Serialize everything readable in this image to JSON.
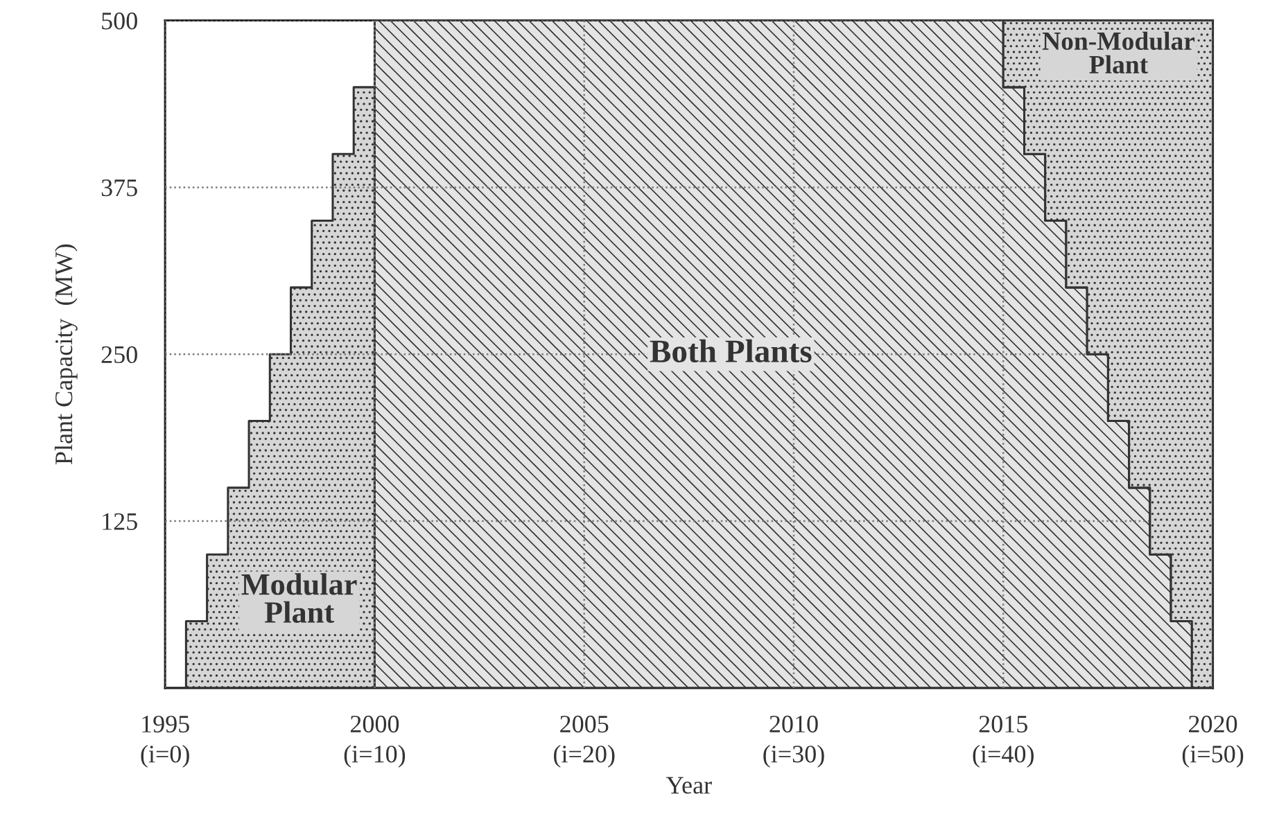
{
  "chart_data": {
    "type": "area",
    "xlabel": "Year",
    "ylabel": "Plant Capacity  (MW)",
    "xlim": [
      1995,
      2020
    ],
    "ylim": [
      0,
      500
    ],
    "xticks": [
      1995,
      2000,
      2005,
      2010,
      2015,
      2020
    ],
    "x2lim": [
      0,
      50
    ],
    "x2ticks": [
      {
        "value": 0,
        "label": "(i=0)"
      },
      {
        "value": 10,
        "label": "(i=10)"
      },
      {
        "value": 20,
        "label": "(i=20)"
      },
      {
        "value": 30,
        "label": "(i=30)"
      },
      {
        "value": 40,
        "label": "(i=40)"
      },
      {
        "value": 50,
        "label": "(i=50)"
      }
    ],
    "yticks": [
      125,
      250,
      375,
      500
    ],
    "grid": true,
    "stacked": true,
    "x": [
      1995.5,
      1995.5,
      1996,
      1996,
      1996.5,
      1996.5,
      1997,
      1997,
      1997.5,
      1997.5,
      1998,
      1998,
      1998.5,
      1998.5,
      1999,
      1999,
      1999.5,
      1999.5,
      2000,
      2000,
      2015,
      2015,
      2015.5,
      2015.5,
      2016,
      2016,
      2016.5,
      2016.5,
      2017,
      2017,
      2017.5,
      2017.5,
      2018,
      2018,
      2018.5,
      2018.5,
      2019,
      2019,
      2019.5,
      2019.5,
      2020
    ],
    "series": [
      {
        "color": "#333333",
        "values": [
          0,
          50,
          50,
          100,
          100,
          150,
          150,
          200,
          200,
          250,
          250,
          300,
          300,
          350,
          350,
          400,
          400,
          450,
          450,
          0,
          null,
          null,
          null,
          null,
          null,
          null,
          null,
          null,
          null,
          null,
          null,
          null,
          null,
          null,
          null,
          null,
          null,
          null,
          null,
          null,
          null
        ]
      },
      {
        "color": "#333333",
        "values": [
          null,
          null,
          null,
          null,
          null,
          null,
          null,
          null,
          null,
          null,
          null,
          null,
          null,
          null,
          null,
          null,
          null,
          null,
          null,
          500,
          500,
          450,
          450,
          400,
          400,
          350,
          350,
          300,
          300,
          250,
          250,
          200,
          200,
          150,
          150,
          100,
          100,
          50,
          50,
          0,
          0
        ]
      },
      {
        "color": "#333333",
        "values": [
          null,
          null,
          null,
          null,
          null,
          null,
          null,
          null,
          null,
          null,
          null,
          null,
          null,
          null,
          null,
          null,
          null,
          null,
          null,
          null,
          0,
          50,
          50,
          100,
          100,
          150,
          150,
          200,
          200,
          250,
          250,
          300,
          300,
          350,
          350,
          400,
          400,
          450,
          450,
          500,
          500
        ]
      }
    ],
    "annotations": [
      "Modular\nPlant",
      "Both Plants",
      "Non-Modular\nPlant"
    ]
  }
}
